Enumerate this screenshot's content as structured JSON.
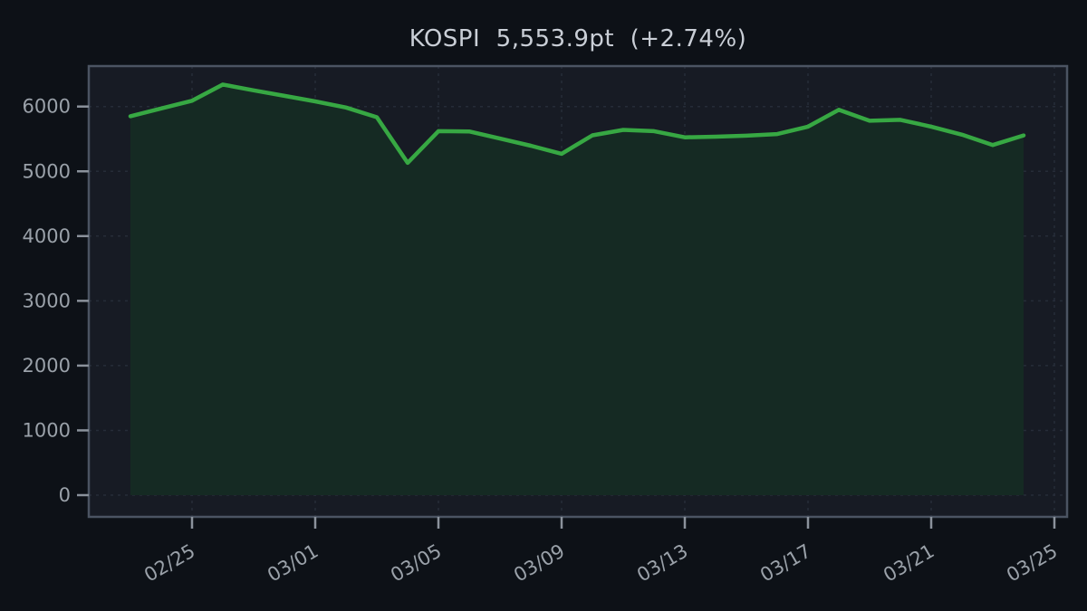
{
  "header": {
    "index_name": "KOSPI",
    "price": "5,553.9pt",
    "change_percent": "(+2.74%)",
    "title_text": "KOSPI  5,553.9pt  (+2.74%)"
  },
  "chart_data": {
    "type": "area",
    "title": "KOSPI 5,553.9pt (+2.74%)",
    "x": [
      "02/23",
      "02/24",
      "02/25",
      "02/26",
      "02/27",
      "02/28",
      "03/01",
      "03/02",
      "03/03",
      "03/04",
      "03/05",
      "03/06",
      "03/07",
      "03/08",
      "03/09",
      "03/10",
      "03/11",
      "03/12",
      "03/13",
      "03/14",
      "03/15",
      "03/16",
      "03/17",
      "03/18",
      "03/19",
      "03/20",
      "03/21",
      "03/22",
      "03/23",
      "03/24"
    ],
    "series": [
      {
        "name": "KOSPI",
        "values": [
          5850,
          5970,
          6090,
          6340,
          6250,
          6165,
          6080,
          5985,
          5835,
          5130,
          5620,
          5615,
          5505,
          5395,
          5270,
          5555,
          5640,
          5620,
          5525,
          5535,
          5550,
          5575,
          5690,
          5950,
          5780,
          5795,
          5690,
          5565,
          5406,
          5553.9
        ]
      }
    ],
    "xlabel": "",
    "ylabel": "",
    "x_tick_labels": [
      "02/25",
      "03/01",
      "03/05",
      "03/09",
      "03/13",
      "03/17",
      "03/21",
      "03/25"
    ],
    "x_tick_indices": [
      2,
      6,
      10,
      14,
      18,
      22,
      26,
      30
    ],
    "y_tick_labels": [
      "0",
      "1000",
      "2000",
      "3000",
      "4000",
      "5000",
      "6000"
    ],
    "y_tick_values": [
      0,
      1000,
      2000,
      3000,
      4000,
      5000,
      6000
    ],
    "ylim": [
      -335,
      6630
    ],
    "grid": true,
    "grid_style": "dashed",
    "legend_position": "none",
    "x_label_rotation_deg": -30,
    "colors": {
      "background": "#0d1117",
      "plot_background": "#171b24",
      "line": "#37a843",
      "fill": "#152a23",
      "grid": "#262c38",
      "border": "#4b5462",
      "tick": "#8b929c",
      "tick_label": "#9aa1a9",
      "title": "#c9ced6"
    }
  }
}
